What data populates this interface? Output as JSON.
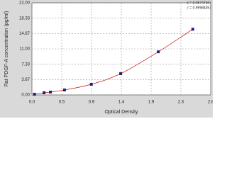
{
  "chart_data": {
    "type": "scatter",
    "stats": [
      "s = 0.06747167",
      "r = 0.99984351"
    ],
    "x_label": "Optical Density",
    "y_label": "Rat PDGF-A concentration (pg/ml)",
    "x": [
      0.04,
      0.19,
      0.29,
      0.51,
      0.93,
      1.39,
      1.98,
      2.52
    ],
    "values": [
      0.17,
      0.51,
      0.68,
      1.18,
      2.54,
      5.08,
      10.3,
      15.7
    ],
    "color": "#1a237e",
    "curve_color": "#cc2222",
    "xlim": [
      0,
      2.8
    ],
    "xticks": [
      {
        "value": 0,
        "label": "0.0"
      },
      {
        "value": 0.467,
        "label": "0.5"
      },
      {
        "value": 0.933,
        "label": "0.9"
      },
      1.4,
      {
        "value": 1.867,
        "label": "1.9"
      },
      {
        "value": 2.333,
        "label": "2.3"
      },
      2.8
    ],
    "ylim": [
      0,
      22
    ],
    "yticks": [
      {
        "value": 0,
        "label": "0.00"
      },
      3.67,
      7.33,
      {
        "value": 11,
        "label": "11.00"
      },
      14.67,
      18.33,
      {
        "value": 22,
        "label": "22.00"
      }
    ],
    "grid": true
  }
}
